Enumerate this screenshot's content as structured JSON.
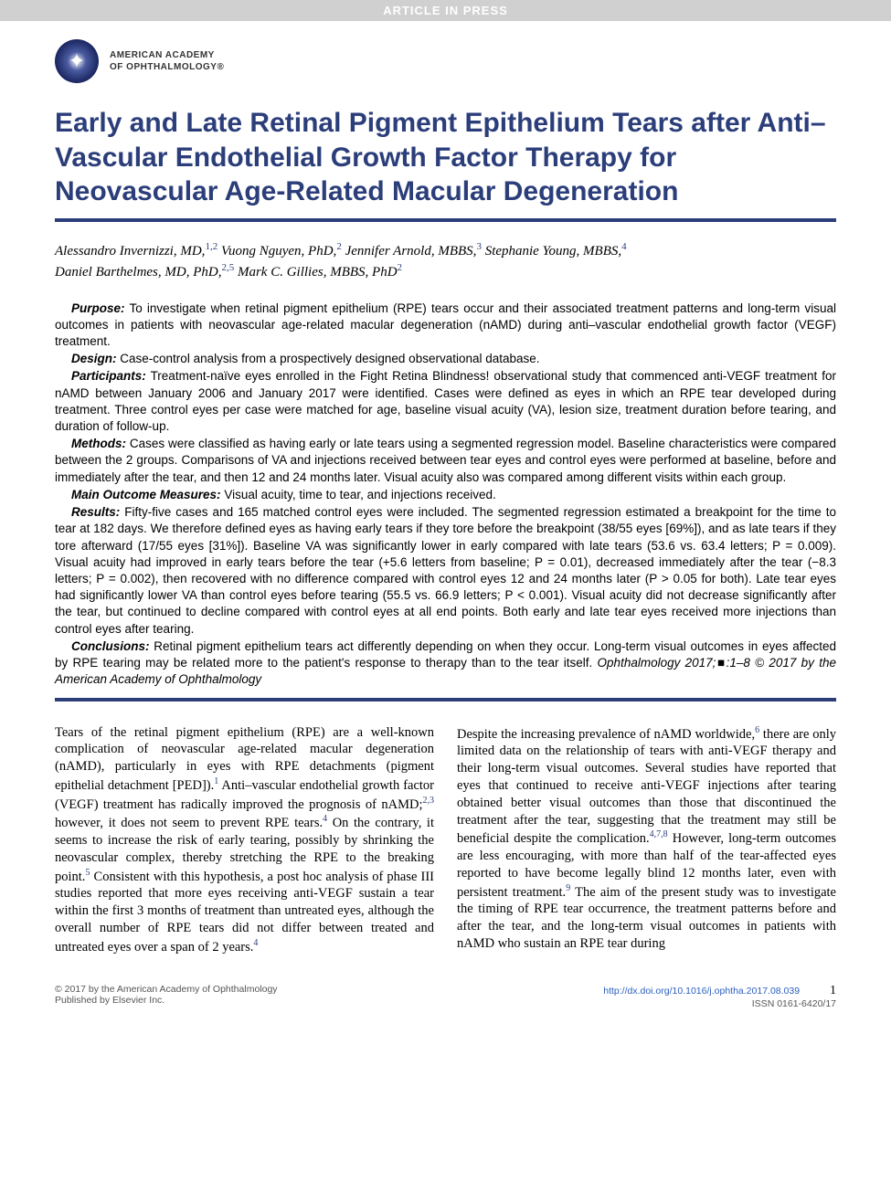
{
  "banner": "ARTICLE IN PRESS",
  "org": {
    "line1": "AMERICAN ACADEMY",
    "line2": "OF OPHTHALMOLOGY®"
  },
  "title": "Early and Late Retinal Pigment Epithelium Tears after Anti–Vascular Endothelial Growth Factor Therapy for Neovascular Age-Related Macular Degeneration",
  "authors": [
    {
      "name": "Alessandro Invernizzi, MD,",
      "aff": "1,2"
    },
    {
      "name": "Vuong Nguyen, PhD,",
      "aff": "2"
    },
    {
      "name": "Jennifer Arnold, MBBS,",
      "aff": "3"
    },
    {
      "name": "Stephanie Young, MBBS,",
      "aff": "4"
    },
    {
      "name": "Daniel Barthelmes, MD, PhD,",
      "aff": "2,5"
    },
    {
      "name": "Mark C. Gillies, MBBS, PhD",
      "aff": "2"
    }
  ],
  "abstract_sections": [
    {
      "label": "Purpose:",
      "text": "To investigate when retinal pigment epithelium (RPE) tears occur and their associated treatment patterns and long-term visual outcomes in patients with neovascular age-related macular degeneration (nAMD) during anti–vascular endothelial growth factor (VEGF) treatment."
    },
    {
      "label": "Design:",
      "text": "Case-control analysis from a prospectively designed observational database."
    },
    {
      "label": "Participants:",
      "text": "Treatment-naïve eyes enrolled in the Fight Retina Blindness! observational study that commenced anti-VEGF treatment for nAMD between January 2006 and January 2017 were identified. Cases were defined as eyes in which an RPE tear developed during treatment. Three control eyes per case were matched for age, baseline visual acuity (VA), lesion size, treatment duration before tearing, and duration of follow-up."
    },
    {
      "label": "Methods:",
      "text": "Cases were classified as having early or late tears using a segmented regression model. Baseline characteristics were compared between the 2 groups. Comparisons of VA and injections received between tear eyes and control eyes were performed at baseline, before and immediately after the tear, and then 12 and 24 months later. Visual acuity also was compared among different visits within each group."
    },
    {
      "label": "Main Outcome Measures:",
      "text": "Visual acuity, time to tear, and injections received."
    },
    {
      "label": "Results:",
      "text": "Fifty-five cases and 165 matched control eyes were included. The segmented regression estimated a breakpoint for the time to tear at 182 days. We therefore defined eyes as having early tears if they tore before the breakpoint (38/55 eyes [69%]), and as late tears if they tore afterward (17/55 eyes [31%]). Baseline VA was significantly lower in early compared with late tears (53.6 vs. 63.4 letters; P = 0.009). Visual acuity had improved in early tears before the tear (+5.6 letters from baseline; P = 0.01), decreased immediately after the tear (−8.3 letters; P = 0.002), then recovered with no difference compared with control eyes 12 and 24 months later (P > 0.05 for both). Late tear eyes had significantly lower VA than control eyes before tearing (55.5 vs. 66.9 letters; P < 0.001). Visual acuity did not decrease significantly after the tear, but continued to decline compared with control eyes at all end points. Both early and late tear eyes received more injections than control eyes after tearing."
    },
    {
      "label": "Conclusions:",
      "text": "Retinal pigment epithelium tears act differently depending on when they occur. Long-term visual outcomes in eyes affected by RPE tearing may be related more to the patient's response to therapy than to the tear itself."
    }
  ],
  "citation": "Ophthalmology 2017;■:1–8 © 2017 by the American Academy of Ophthalmology",
  "body": {
    "col1_p1": "Tears of the retinal pigment epithelium (RPE) are a well-known complication of neovascular age-related macular degeneration (nAMD), particularly in eyes with RPE detachments (pigment epithelial detachment [PED]).",
    "col1_p1_ref": "1",
    "col1_p1b": " Anti–vascular endothelial growth factor (VEGF) treatment has radically improved the prognosis of nAMD;",
    "col1_p1b_ref": "2,3",
    "col1_p1c": " however, it does not seem to prevent RPE tears.",
    "col1_p1c_ref": "4",
    "col1_p1d": " On the contrary, it seems to increase the risk of early tearing, possibly by shrinking the neovascular complex, thereby stretching the RPE to the breaking point.",
    "col1_p1d_ref": "5",
    "col1_p1e": " Consistent with this hypothesis, a post hoc analysis of phase III studies reported that more eyes receiving anti-VEGF sustain a tear within the first 3 months of treatment than untreated eyes, although the overall number of RPE tears did not differ between treated and untreated eyes over a span of 2 years.",
    "col1_p1e_ref": "4",
    "col2_p1": "Despite the increasing prevalence of nAMD worldwide,",
    "col2_p1_ref": "6",
    "col2_p1b": " there are only limited data on the relationship of tears with anti-VEGF therapy and their long-term visual outcomes. Several studies have reported that eyes that continued to receive anti-VEGF injections after tearing obtained better visual outcomes than those that discontinued the treatment after the tear, suggesting that the treatment may still be beneficial despite the complication.",
    "col2_p1b_ref": "4,7,8",
    "col2_p1c": " However, long-term outcomes are less encouraging, with more than half of the tear-affected eyes reported to have become legally blind 12 months later, even with persistent treatment.",
    "col2_p1c_ref": "9",
    "col2_p1d": " The aim of the present study was to investigate the timing of RPE tear occurrence, the treatment patterns before and after the tear, and the long-term visual outcomes in patients with nAMD who sustain an RPE tear during"
  },
  "footer": {
    "copyright": "© 2017 by the American Academy of Ophthalmology",
    "publisher": "Published by Elsevier Inc.",
    "doi": "http://dx.doi.org/10.1016/j.ophtha.2017.08.039",
    "issn": "ISSN 0161-6420/17",
    "page": "1"
  },
  "colors": {
    "title_blue": "#2b3e7a",
    "link_blue": "#2b5fc0",
    "banner_bg": "#d0d0d0"
  }
}
